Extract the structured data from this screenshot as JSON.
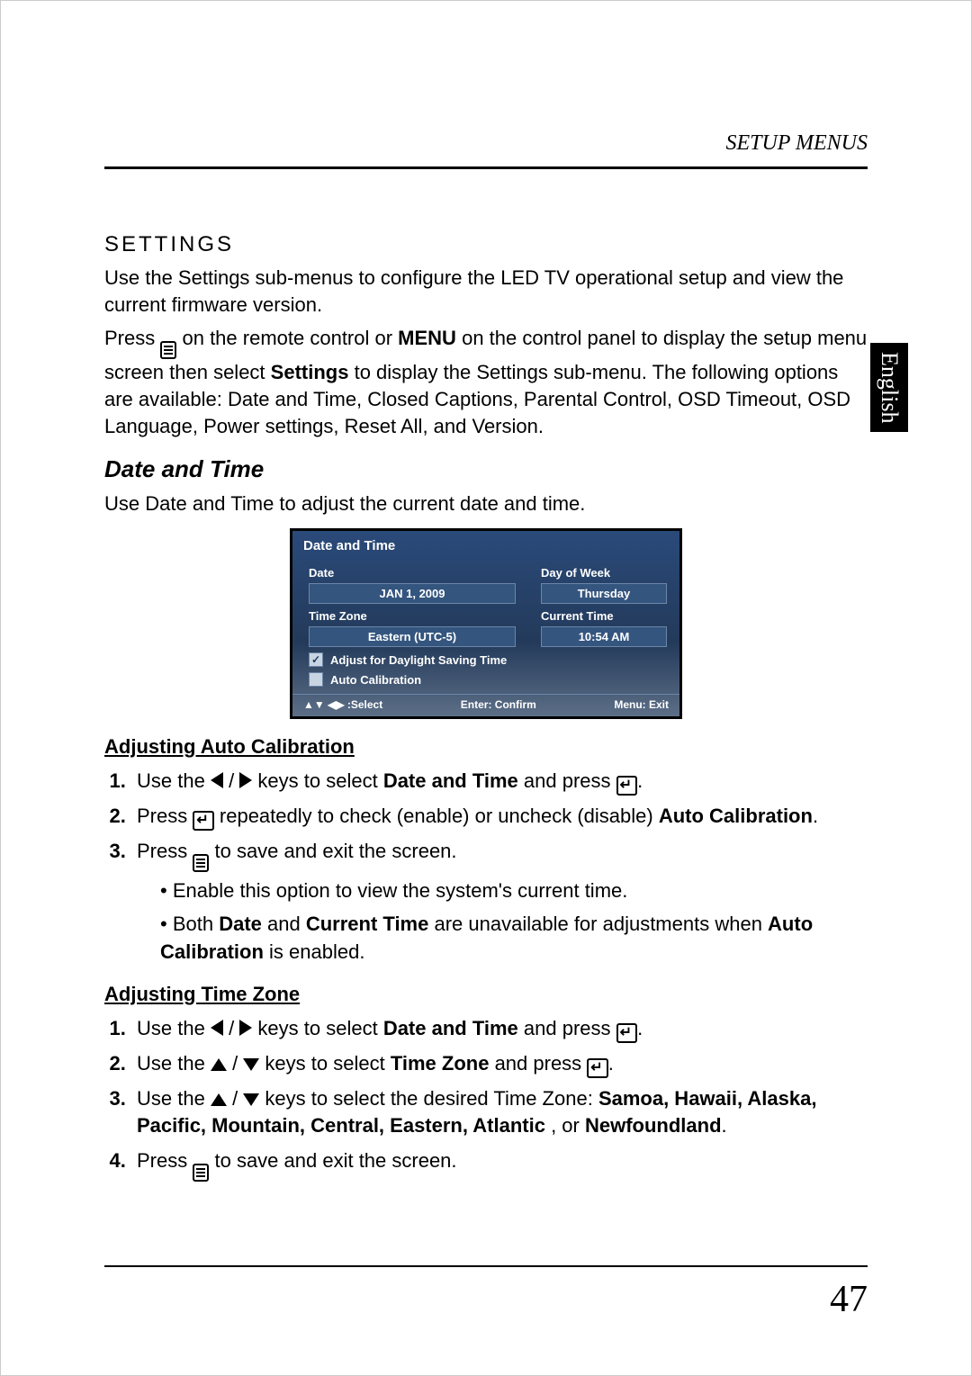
{
  "running_head": "SETUP MENUS",
  "lang_tab": "English",
  "section_head": "SETTINGS",
  "intro1": "Use the Settings sub-menus to configure the LED TV operational setup and view the current firmware version.",
  "intro2a": "Press ",
  "intro2b": " on the remote control or ",
  "intro2_menu": "MENU",
  "intro2c": " on the control panel to display the setup menu screen then select ",
  "intro2_settings": "Settings",
  "intro2d": " to display the Settings sub-menu. The following options are available: Date and Time, Closed Captions, Parental Control, OSD Timeout, OSD Language, Power settings, Reset All, and Version.",
  "subhead": "Date and Time",
  "sub_intro": "Use Date and Time to adjust the current date and time.",
  "osd": {
    "title": "Date and Time",
    "date_label": "Date",
    "date_value": "JAN 1, 2009",
    "dow_label": "Day of Week",
    "dow_value": "Thursday",
    "tz_label": "Time Zone",
    "tz_value": "Eastern (UTC-5)",
    "ct_label": "Current Time",
    "ct_value": "10:54 AM",
    "dst_label": "Adjust for Daylight Saving Time",
    "dst_checked": "✓",
    "auto_label": "Auto Calibration",
    "footer_select": "▲▼ ◀▶ :Select",
    "footer_enter": "Enter: Confirm",
    "footer_menu": "Menu: Exit"
  },
  "h_auto": "Adjusting Auto Calibration",
  "step_a1a": "Use the ",
  "step_a1b": " / ",
  "step_a1c": " keys to select ",
  "step_a1_dt": "Date and Time",
  "step_a1d": " and press ",
  "step_a1e": ".",
  "step_a2a": "Press ",
  "step_a2b": " repeatedly to check (enable) or uncheck (disable) ",
  "step_a2_auto": "Auto Calibration",
  "step_a2c": ".",
  "step_a3a": "Press ",
  "step_a3b": " to save and exit the screen.",
  "bullet1": "Enable this option to view the system's current time.",
  "bullet2a": "Both ",
  "bullet2_date": "Date",
  "bullet2b": " and ",
  "bullet2_ct": "Current Time",
  "bullet2c": " are unavailable for adjustments when ",
  "bullet2_auto": "Auto Calibration",
  "bullet2d": " is enabled.",
  "h_tz": "Adjusting Time Zone",
  "step_t1a": "Use the ",
  "step_t1b": " / ",
  "step_t1c": " keys to select ",
  "step_t1_dt": "Date and Time",
  "step_t1d": " and press ",
  "step_t1e": ".",
  "step_t2a": "Use the ",
  "step_t2b": " / ",
  "step_t2c": " keys to select ",
  "step_t2_tz": "Time Zone",
  "step_t2d": " and press ",
  "step_t2e": ".",
  "step_t3a": "Use the ",
  "step_t3b": " / ",
  "step_t3c": " keys to select the desired Time Zone: ",
  "step_t3_list": "Samoa, Hawaii, Alaska, Pacific, Mountain, Central, Eastern, Atlantic",
  "step_t3d": ", or ",
  "step_t3_nf": "Newfoundland",
  "step_t3e": ".",
  "step_t4a": "Press ",
  "step_t4b": " to save and exit the screen.",
  "page_num": "47"
}
